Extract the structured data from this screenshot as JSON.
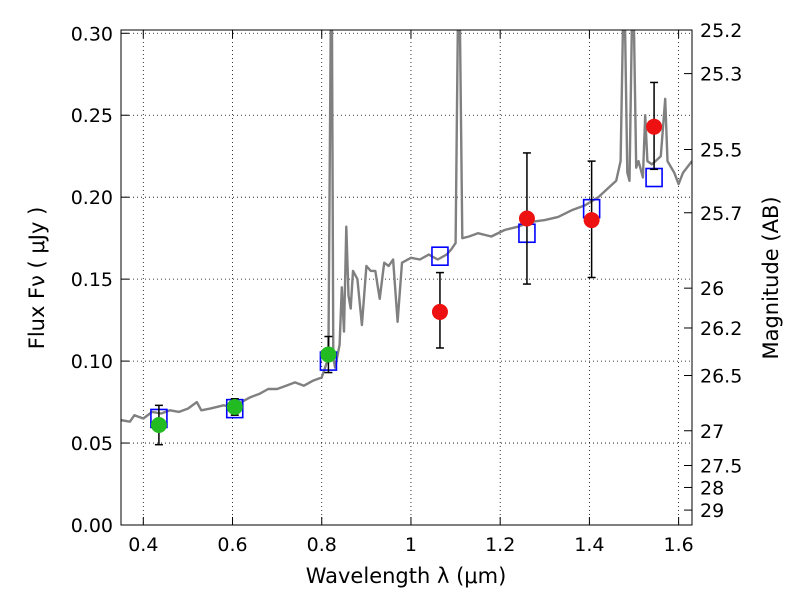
{
  "chart_data": {
    "type": "scatter",
    "title": "",
    "xlabel": "Wavelength  λ (μm)",
    "ylabel_left": "Flux  Fν  ( μJy )",
    "ylabel_right": "Magnitude (AB)",
    "xlim": [
      0.35,
      1.63
    ],
    "ylim": [
      0.0,
      0.302
    ],
    "grid": true,
    "grid_style": "dotted",
    "x_ticks": [
      0.4,
      0.6,
      0.8,
      1.0,
      1.2,
      1.4,
      1.6
    ],
    "x_tick_labels": [
      "0.4",
      "0.6",
      "0.8",
      "1",
      "1.2",
      "1.4",
      "1.6"
    ],
    "y_ticks": [
      0.0,
      0.05,
      0.1,
      0.15,
      0.2,
      0.25,
      0.3
    ],
    "y_tick_labels": [
      "0.00",
      "0.05",
      "0.10",
      "0.15",
      "0.20",
      "0.25",
      "0.30"
    ],
    "right_ticks": [
      {
        "label": "25.2",
        "flux": 0.302
      },
      {
        "label": "25.3",
        "flux": 0.2754
      },
      {
        "label": "25.5",
        "flux": 0.2291
      },
      {
        "label": "25.7",
        "flux": 0.1905
      },
      {
        "label": "26",
        "flux": 0.1445
      },
      {
        "label": "26.2",
        "flux": 0.1202
      },
      {
        "label": "26.5",
        "flux": 0.0912
      },
      {
        "label": "27",
        "flux": 0.0575
      },
      {
        "label": "27.5",
        "flux": 0.0363
      },
      {
        "label": "28",
        "flux": 0.0229
      },
      {
        "label": "29",
        "flux": 0.0091
      }
    ],
    "series": [
      {
        "kind": "model_spectrum",
        "color": "#808080",
        "points": [
          [
            0.35,
            0.064
          ],
          [
            0.37,
            0.063
          ],
          [
            0.38,
            0.067
          ],
          [
            0.4,
            0.065
          ],
          [
            0.42,
            0.069
          ],
          [
            0.44,
            0.068
          ],
          [
            0.46,
            0.07
          ],
          [
            0.48,
            0.069
          ],
          [
            0.5,
            0.071
          ],
          [
            0.52,
            0.075
          ],
          [
            0.53,
            0.07
          ],
          [
            0.55,
            0.071
          ],
          [
            0.58,
            0.073
          ],
          [
            0.6,
            0.072
          ],
          [
            0.62,
            0.075
          ],
          [
            0.64,
            0.078
          ],
          [
            0.66,
            0.08
          ],
          [
            0.68,
            0.083
          ],
          [
            0.7,
            0.083
          ],
          [
            0.72,
            0.085
          ],
          [
            0.74,
            0.087
          ],
          [
            0.76,
            0.085
          ],
          [
            0.78,
            0.088
          ],
          [
            0.8,
            0.09
          ],
          [
            0.81,
            0.098
          ],
          [
            0.815,
            0.102
          ],
          [
            0.82,
            0.302
          ],
          [
            0.823,
            0.302
          ],
          [
            0.826,
            0.102
          ],
          [
            0.83,
            0.096
          ],
          [
            0.84,
            0.11
          ],
          [
            0.845,
            0.145
          ],
          [
            0.85,
            0.118
          ],
          [
            0.855,
            0.182
          ],
          [
            0.86,
            0.14
          ],
          [
            0.865,
            0.132
          ],
          [
            0.87,
            0.155
          ],
          [
            0.88,
            0.15
          ],
          [
            0.89,
            0.122
          ],
          [
            0.9,
            0.158
          ],
          [
            0.91,
            0.155
          ],
          [
            0.92,
            0.155
          ],
          [
            0.93,
            0.138
          ],
          [
            0.94,
            0.16
          ],
          [
            0.95,
            0.158
          ],
          [
            0.96,
            0.162
          ],
          [
            0.97,
            0.124
          ],
          [
            0.98,
            0.16
          ],
          [
            1.0,
            0.163
          ],
          [
            1.02,
            0.162
          ],
          [
            1.04,
            0.165
          ],
          [
            1.06,
            0.162
          ],
          [
            1.08,
            0.165
          ],
          [
            1.09,
            0.168
          ],
          [
            1.1,
            0.172
          ],
          [
            1.105,
            0.302
          ],
          [
            1.11,
            0.302
          ],
          [
            1.115,
            0.175
          ],
          [
            1.13,
            0.176
          ],
          [
            1.15,
            0.178
          ],
          [
            1.18,
            0.176
          ],
          [
            1.21,
            0.18
          ],
          [
            1.24,
            0.182
          ],
          [
            1.27,
            0.185
          ],
          [
            1.3,
            0.186
          ],
          [
            1.33,
            0.188
          ],
          [
            1.36,
            0.192
          ],
          [
            1.39,
            0.195
          ],
          [
            1.42,
            0.2
          ],
          [
            1.44,
            0.205
          ],
          [
            1.46,
            0.21
          ],
          [
            1.47,
            0.222
          ],
          [
            1.475,
            0.302
          ],
          [
            1.48,
            0.302
          ],
          [
            1.485,
            0.215
          ],
          [
            1.49,
            0.21
          ],
          [
            1.495,
            0.302
          ],
          [
            1.5,
            0.302
          ],
          [
            1.505,
            0.218
          ],
          [
            1.51,
            0.222
          ],
          [
            1.52,
            0.212
          ],
          [
            1.525,
            0.25
          ],
          [
            1.53,
            0.222
          ],
          [
            1.54,
            0.22
          ],
          [
            1.56,
            0.225
          ],
          [
            1.57,
            0.26
          ],
          [
            1.575,
            0.222
          ],
          [
            1.59,
            0.215
          ],
          [
            1.6,
            0.208
          ],
          [
            1.61,
            0.215
          ],
          [
            1.63,
            0.222
          ]
        ]
      },
      {
        "kind": "model_photometry",
        "marker": "open-square",
        "color": "#0000ff",
        "points": [
          [
            0.435,
            0.065
          ],
          [
            0.605,
            0.071
          ],
          [
            0.815,
            0.1
          ],
          [
            1.065,
            0.164
          ],
          [
            1.26,
            0.178
          ],
          [
            1.405,
            0.193
          ],
          [
            1.545,
            0.212
          ]
        ]
      },
      {
        "kind": "observed_optical",
        "marker": "filled-circle",
        "color": "#22bb22",
        "points": [
          {
            "x": 0.435,
            "y": 0.061,
            "yerr_low": 0.012,
            "yerr_high": 0.012
          },
          {
            "x": 0.605,
            "y": 0.072,
            "yerr_low": 0.005,
            "yerr_high": 0.005
          },
          {
            "x": 0.815,
            "y": 0.104,
            "yerr_low": 0.011,
            "yerr_high": 0.011
          }
        ]
      },
      {
        "kind": "observed_nir",
        "marker": "filled-circle",
        "color": "#ee1111",
        "points": [
          {
            "x": 1.065,
            "y": 0.13,
            "yerr_low": 0.022,
            "yerr_high": 0.024
          },
          {
            "x": 1.26,
            "y": 0.187,
            "yerr_low": 0.04,
            "yerr_high": 0.04
          },
          {
            "x": 1.405,
            "y": 0.186,
            "yerr_low": 0.035,
            "yerr_high": 0.036
          },
          {
            "x": 1.545,
            "y": 0.243,
            "yerr_low": 0.026,
            "yerr_high": 0.027
          }
        ]
      }
    ]
  }
}
